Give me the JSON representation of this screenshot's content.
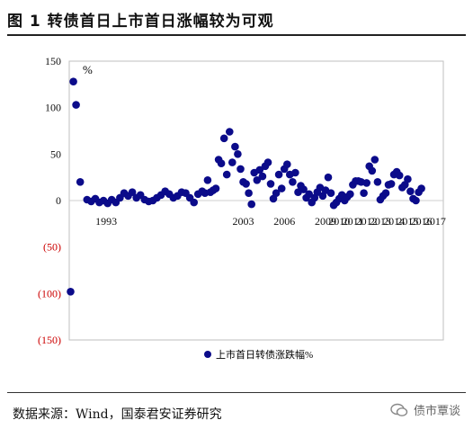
{
  "header": {
    "title": "图 1    转债首日上市首日涨幅较为可观"
  },
  "footer": {
    "source": "数据来源：Wind，国泰君安证券研究",
    "watermark": "债市覃谈"
  },
  "colors": {
    "marker": "#0b0b8a",
    "negative_tick": "#cc0000",
    "axis_text": "#111111",
    "plot_border": "#bfbfbf"
  },
  "chart_data": {
    "type": "scatter",
    "unit_label": "%",
    "ylim": [
      -150,
      150
    ],
    "yticks": [
      150,
      100,
      50,
      0,
      -50,
      -100,
      -150
    ],
    "ytick_labels": [
      "150",
      "100",
      "50",
      "0",
      "(50)",
      "(100)",
      "(150)"
    ],
    "x_domain": [
      1991,
      2018.3
    ],
    "xticks": [
      {
        "value": 1993.7,
        "label": "1993"
      },
      {
        "value": 2003.7,
        "label": "2003"
      },
      {
        "value": 2006.7,
        "label": "2006"
      },
      {
        "value": 2009.7,
        "label": "2009"
      },
      {
        "value": 2010.7,
        "label": "2010"
      },
      {
        "value": 2011.7,
        "label": "2011"
      },
      {
        "value": 2012.7,
        "label": "2012"
      },
      {
        "value": 2013.7,
        "label": "2013"
      },
      {
        "value": 2014.7,
        "label": "2014"
      },
      {
        "value": 2015.7,
        "label": "2015"
      },
      {
        "value": 2016.7,
        "label": "2016"
      },
      {
        "value": 2017.7,
        "label": "2017"
      }
    ],
    "legend_position": "bottom-center",
    "grid": false,
    "series": [
      {
        "name": "上市首日转债涨跌幅%",
        "points": [
          [
            1991.1,
            -98
          ],
          [
            1991.3,
            128
          ],
          [
            1991.5,
            103
          ],
          [
            1991.8,
            20
          ],
          [
            1992.3,
            1
          ],
          [
            1992.6,
            -1
          ],
          [
            1992.9,
            2
          ],
          [
            1993.2,
            -2
          ],
          [
            1993.5,
            0
          ],
          [
            1993.8,
            -3
          ],
          [
            1994.1,
            1
          ],
          [
            1994.4,
            -2
          ],
          [
            1994.7,
            3
          ],
          [
            1995.0,
            8
          ],
          [
            1995.3,
            5
          ],
          [
            1995.6,
            9
          ],
          [
            1995.9,
            3
          ],
          [
            1996.2,
            6
          ],
          [
            1996.5,
            1
          ],
          [
            1996.8,
            -1
          ],
          [
            1997.1,
            0
          ],
          [
            1997.4,
            3
          ],
          [
            1997.7,
            6
          ],
          [
            1998.0,
            10
          ],
          [
            1998.3,
            7
          ],
          [
            1998.6,
            3
          ],
          [
            1998.9,
            5
          ],
          [
            1999.2,
            9
          ],
          [
            1999.5,
            8
          ],
          [
            1999.8,
            3
          ],
          [
            2000.1,
            -2
          ],
          [
            2000.4,
            7
          ],
          [
            2000.7,
            10
          ],
          [
            2000.9,
            8
          ],
          [
            2001.1,
            22
          ],
          [
            2001.3,
            9
          ],
          [
            2001.5,
            11
          ],
          [
            2001.7,
            13
          ],
          [
            2001.9,
            44
          ],
          [
            2002.1,
            40
          ],
          [
            2002.3,
            67
          ],
          [
            2002.5,
            28
          ],
          [
            2002.7,
            74
          ],
          [
            2002.9,
            41
          ],
          [
            2003.1,
            58
          ],
          [
            2003.3,
            50
          ],
          [
            2003.5,
            34
          ],
          [
            2003.7,
            20
          ],
          [
            2003.9,
            18
          ],
          [
            2004.1,
            8
          ],
          [
            2004.3,
            -4
          ],
          [
            2004.5,
            30
          ],
          [
            2004.7,
            22
          ],
          [
            2004.9,
            33
          ],
          [
            2005.1,
            26
          ],
          [
            2005.3,
            37
          ],
          [
            2005.5,
            41
          ],
          [
            2005.7,
            18
          ],
          [
            2005.9,
            2
          ],
          [
            2006.1,
            8
          ],
          [
            2006.3,
            28
          ],
          [
            2006.5,
            13
          ],
          [
            2006.7,
            34
          ],
          [
            2006.9,
            39
          ],
          [
            2007.1,
            28
          ],
          [
            2007.3,
            20
          ],
          [
            2007.5,
            30
          ],
          [
            2007.7,
            9
          ],
          [
            2007.9,
            16
          ],
          [
            2008.1,
            12
          ],
          [
            2008.3,
            3
          ],
          [
            2008.5,
            7
          ],
          [
            2008.7,
            -2
          ],
          [
            2008.9,
            3
          ],
          [
            2009.1,
            9
          ],
          [
            2009.3,
            14
          ],
          [
            2009.5,
            5
          ],
          [
            2009.7,
            11
          ],
          [
            2009.9,
            25
          ],
          [
            2010.1,
            8
          ],
          [
            2010.3,
            -5
          ],
          [
            2010.5,
            -2
          ],
          [
            2010.7,
            2
          ],
          [
            2010.9,
            6
          ],
          [
            2011.1,
            0
          ],
          [
            2011.3,
            4
          ],
          [
            2011.5,
            7
          ],
          [
            2011.7,
            17
          ],
          [
            2011.9,
            21
          ],
          [
            2012.1,
            21
          ],
          [
            2012.3,
            20
          ],
          [
            2012.5,
            8
          ],
          [
            2012.7,
            19
          ],
          [
            2012.9,
            37
          ],
          [
            2013.1,
            32
          ],
          [
            2013.3,
            44
          ],
          [
            2013.5,
            20
          ],
          [
            2013.7,
            1
          ],
          [
            2013.9,
            5
          ],
          [
            2014.1,
            8
          ],
          [
            2014.3,
            17
          ],
          [
            2014.5,
            18
          ],
          [
            2014.7,
            28
          ],
          [
            2014.9,
            31
          ],
          [
            2015.1,
            27
          ],
          [
            2015.3,
            14
          ],
          [
            2015.5,
            17
          ],
          [
            2015.7,
            23
          ],
          [
            2015.9,
            10
          ],
          [
            2016.1,
            2
          ],
          [
            2016.3,
            0
          ],
          [
            2016.5,
            9
          ],
          [
            2016.7,
            13
          ]
        ]
      }
    ]
  }
}
